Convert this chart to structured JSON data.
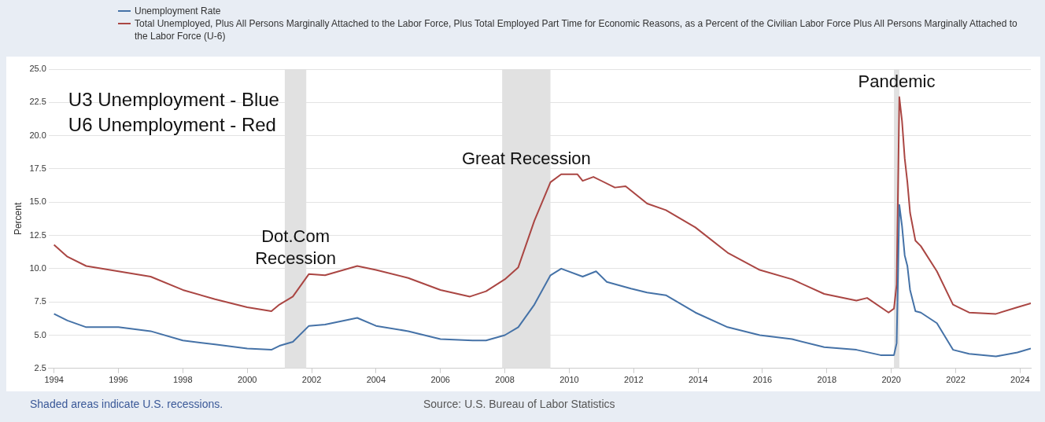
{
  "chart_data": {
    "type": "line",
    "ylabel": "Percent",
    "legend": "top left",
    "grid": "y",
    "marker": "none",
    "line_style": "solid",
    "xlim": [
      "1993-11",
      "2024-05"
    ],
    "xticks": [
      "1994",
      "1996",
      "1998",
      "2000",
      "2002",
      "2004",
      "2006",
      "2008",
      "2010",
      "2012",
      "2014",
      "2016",
      "2018",
      "2020",
      "2022",
      "2024"
    ],
    "ylim": [
      2.5,
      25
    ],
    "yticks": [
      {
        "value": 2.5,
        "label": "2.5"
      },
      {
        "value": 5,
        "label": "5.0"
      },
      {
        "value": 7.5,
        "label": "7.5"
      },
      {
        "value": 10,
        "label": "10.0"
      },
      {
        "value": 12.5,
        "label": "12.5"
      },
      {
        "value": 15,
        "label": "15.0"
      },
      {
        "value": 17.5,
        "label": "17.5"
      },
      {
        "value": 20,
        "label": "20.0"
      },
      {
        "value": 22.5,
        "label": "22.5"
      },
      {
        "value": 25,
        "label": "25.0"
      }
    ],
    "series": [
      {
        "name": "Unemployment Rate",
        "color": "#4572a7",
        "x": [
          "1994-01",
          "1994-06",
          "1995-01",
          "1996-01",
          "1997-01",
          "1998-01",
          "1999-01",
          "2000-01",
          "2000-10",
          "2001-01",
          "2001-06",
          "2001-12",
          "2002-06",
          "2003-06",
          "2004-01",
          "2005-01",
          "2006-01",
          "2007-01",
          "2007-06",
          "2008-01",
          "2008-06",
          "2008-12",
          "2009-06",
          "2009-10",
          "2010-06",
          "2010-11",
          "2011-03",
          "2011-12",
          "2012-06",
          "2013-01",
          "2013-12",
          "2014-12",
          "2015-12",
          "2016-12",
          "2017-12",
          "2018-12",
          "2019-09",
          "2020-02",
          "2020-03",
          "2020-04",
          "2020-05",
          "2020-06",
          "2020-07",
          "2020-08",
          "2020-10",
          "2020-12",
          "2021-06",
          "2021-12",
          "2022-06",
          "2023-04",
          "2023-12",
          "2024-05"
        ],
        "values": [
          6.6,
          6.1,
          5.6,
          5.6,
          5.3,
          4.6,
          4.3,
          4.0,
          3.9,
          4.2,
          4.5,
          5.7,
          5.8,
          6.3,
          5.7,
          5.3,
          4.7,
          4.6,
          4.6,
          5.0,
          5.6,
          7.3,
          9.5,
          10.0,
          9.4,
          9.8,
          9.0,
          8.5,
          8.2,
          8.0,
          6.7,
          5.6,
          5.0,
          4.7,
          4.1,
          3.9,
          3.5,
          3.5,
          4.4,
          14.8,
          13.2,
          11.0,
          10.2,
          8.4,
          6.8,
          6.7,
          5.9,
          3.9,
          3.6,
          3.4,
          3.7,
          4.0
        ]
      },
      {
        "name": "Total Unemployed, Plus All Persons Marginally Attached to the Labor Force, Plus Total Employed Part Time for Economic Reasons, as a Percent of the Civilian Labor Force Plus All Persons Marginally Attached to the Labor Force (U-6)",
        "color": "#aa4643",
        "x": [
          "1994-01",
          "1994-06",
          "1995-01",
          "1996-01",
          "1997-01",
          "1998-01",
          "1999-01",
          "2000-01",
          "2000-10",
          "2001-01",
          "2001-06",
          "2001-12",
          "2002-06",
          "2003-06",
          "2004-01",
          "2005-01",
          "2006-01",
          "2006-12",
          "2007-06",
          "2008-01",
          "2008-06",
          "2008-12",
          "2009-06",
          "2009-10",
          "2010-04",
          "2010-06",
          "2010-10",
          "2011-06",
          "2011-10",
          "2012-06",
          "2013-01",
          "2013-12",
          "2014-12",
          "2015-12",
          "2016-12",
          "2017-12",
          "2018-12",
          "2019-04",
          "2019-12",
          "2020-02",
          "2020-03",
          "2020-04",
          "2020-05",
          "2020-06",
          "2020-07",
          "2020-08",
          "2020-10",
          "2020-12",
          "2021-06",
          "2021-12",
          "2022-06",
          "2023-04",
          "2023-12",
          "2024-05"
        ],
        "values": [
          11.8,
          10.9,
          10.2,
          9.8,
          9.4,
          8.4,
          7.7,
          7.1,
          6.8,
          7.3,
          7.9,
          9.6,
          9.5,
          10.2,
          9.9,
          9.3,
          8.4,
          7.9,
          8.3,
          9.2,
          10.1,
          13.6,
          16.5,
          17.1,
          17.1,
          16.6,
          16.9,
          16.1,
          16.2,
          14.9,
          14.4,
          13.1,
          11.2,
          9.9,
          9.2,
          8.1,
          7.6,
          7.8,
          6.7,
          7.0,
          8.8,
          22.9,
          21.1,
          18.3,
          16.5,
          14.2,
          12.1,
          11.7,
          9.8,
          7.3,
          6.7,
          6.6,
          7.1,
          7.4
        ]
      }
    ],
    "bands": [
      {
        "axis": "x",
        "from": "2001-03",
        "to": "2001-11",
        "label": "Dot.Com Recession",
        "color": "#e1e1e1"
      },
      {
        "axis": "x",
        "from": "2007-12",
        "to": "2009-06",
        "label": "Great Recession",
        "color": "#e1e1e1"
      },
      {
        "axis": "x",
        "from": "2020-02",
        "to": "2020-04",
        "label": "Pandemic",
        "color": "#e1e1e1"
      }
    ],
    "annotations": [
      "U3 Unemployment - Blue",
      "U6 Unemployment - Red",
      "Shaded areas indicate U.S. recessions.",
      "Source: U.S. Bureau of Labor Statistics"
    ]
  }
}
